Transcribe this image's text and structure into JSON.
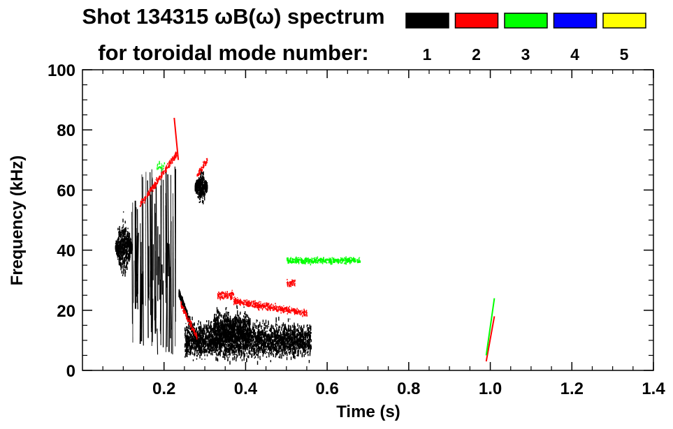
{
  "chart_data": {
    "type": "heatmap",
    "title_line1": "Shot 134315 ωB(ω) spectrum",
    "title_line2": "for toroidal mode number:",
    "xlabel": "Time (s)",
    "ylabel": "Frequency (kHz)",
    "xlim": [
      0.0,
      1.4
    ],
    "ylim": [
      0,
      100
    ],
    "x_ticks": [
      0.2,
      0.4,
      0.6,
      0.8,
      1.0,
      1.2,
      1.4
    ],
    "x_tick_labels": [
      "0.2",
      "0.4",
      "0.6",
      "0.8",
      "1.0",
      "1.2",
      "1.4"
    ],
    "y_ticks": [
      0,
      20,
      40,
      60,
      80,
      100
    ],
    "y_tick_labels": [
      "0",
      "20",
      "40",
      "60",
      "80",
      "100"
    ],
    "legend": {
      "placement": "top-right",
      "entries": [
        {
          "label": "1",
          "color": "#000000"
        },
        {
          "label": "2",
          "color": "#ff0000"
        },
        {
          "label": "3",
          "color": "#00ff00"
        },
        {
          "label": "4",
          "color": "#0000ff"
        },
        {
          "label": "5",
          "color": "#ffff00"
        }
      ]
    },
    "mode_features": [
      {
        "mode": 1,
        "t_start": 0.08,
        "t_end": 0.12,
        "f_center": 41,
        "f_spread": 8,
        "kind": "blob"
      },
      {
        "mode": 1,
        "t_start": 0.12,
        "t_end": 0.23,
        "f_low": 5,
        "f_high": 60,
        "kind": "vertical_streaks"
      },
      {
        "mode": 1,
        "t_start": 0.235,
        "t_end": 0.29,
        "f_start": 26,
        "f_end": 6,
        "kind": "chirp_down"
      },
      {
        "mode": 1,
        "t_start": 0.275,
        "t_end": 0.305,
        "f_center": 61,
        "f_spread": 4,
        "kind": "blob"
      },
      {
        "mode": 1,
        "t_start": 0.25,
        "t_end": 0.56,
        "f_center": 10,
        "f_spread": 6,
        "kind": "band"
      },
      {
        "mode": 1,
        "t_start": 0.32,
        "t_end": 0.41,
        "f_center": 14,
        "f_spread": 7,
        "kind": "bursts"
      },
      {
        "mode": 2,
        "t_start": 0.14,
        "t_end": 0.23,
        "f_start": 55,
        "f_end": 72,
        "kind": "chirp_up"
      },
      {
        "mode": 2,
        "t_start": 0.225,
        "t_end": 0.235,
        "f_start": 84,
        "f_end": 70,
        "kind": "streak"
      },
      {
        "mode": 2,
        "t_start": 0.28,
        "t_end": 0.305,
        "f_start": 65,
        "f_end": 70,
        "kind": "chirp_up"
      },
      {
        "mode": 2,
        "t_start": 0.24,
        "t_end": 0.28,
        "f_start": 22,
        "f_end": 11,
        "kind": "chirp_down"
      },
      {
        "mode": 2,
        "t_start": 0.33,
        "t_end": 0.37,
        "f_center": 25,
        "f_spread": 1.5,
        "kind": "band"
      },
      {
        "mode": 2,
        "t_start": 0.37,
        "t_end": 0.55,
        "f_start": 23,
        "f_end": 19,
        "kind": "band"
      },
      {
        "mode": 2,
        "t_start": 0.5,
        "t_end": 0.52,
        "f_center": 29,
        "f_spread": 1,
        "kind": "band"
      },
      {
        "mode": 2,
        "t_start": 0.99,
        "t_end": 1.01,
        "f_start": 3,
        "f_end": 18,
        "kind": "streak"
      },
      {
        "mode": 3,
        "t_start": 0.5,
        "t_end": 0.68,
        "f_center": 36.5,
        "f_spread": 1,
        "kind": "band"
      },
      {
        "mode": 3,
        "t_start": 0.18,
        "t_end": 0.2,
        "f_center": 68,
        "f_spread": 2,
        "kind": "dots"
      },
      {
        "mode": 3,
        "t_start": 0.99,
        "t_end": 1.01,
        "f_start": 5,
        "f_end": 24,
        "kind": "streak"
      }
    ]
  }
}
